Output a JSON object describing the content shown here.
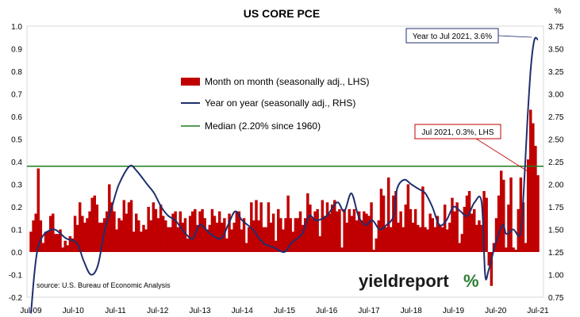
{
  "chart_data": {
    "type": "bar+line",
    "title": "US CORE PCE",
    "left_axis_unit": "",
    "right_axis_unit": "%",
    "left_ylim": [
      -0.2,
      1.0
    ],
    "left_ticks": [
      "-0.2",
      "-0.1",
      "0.0",
      "0.1",
      "0.2",
      "0.3",
      "0.4",
      "0.5",
      "0.6",
      "0.7",
      "0.8",
      "0.9",
      "1.0"
    ],
    "right_ylim": [
      0.75,
      3.75
    ],
    "right_ticks": [
      "0.75",
      "1.00",
      "1.25",
      "1.50",
      "1.75",
      "2.00",
      "2.25",
      "2.50",
      "2.75",
      "3.00",
      "3.25",
      "3.50",
      "3.75"
    ],
    "x_tick_labels": [
      "Jul-09",
      "Jul-10",
      "Jul-11",
      "Jul-12",
      "Jul-13",
      "Jul-14",
      "Jul-15",
      "Jul-16",
      "Jul-17",
      "Jul-18",
      "Jul-19",
      "Jul-20",
      "Jul-21"
    ],
    "grid": false,
    "legend_position": "top-center",
    "legend": {
      "mom": "Month on month (seasonally adj., LHS)",
      "yoy": "Year on year (seasonally adj., RHS)",
      "median": "Median (2.20% since 1960)"
    },
    "colors": {
      "mom": "#c00000",
      "yoy": "#1f2f6e",
      "median": "#1e7b1e"
    },
    "median_rhs": 2.2,
    "mom_values": [
      0.09,
      0.14,
      0.17,
      0.37,
      0.14,
      0.04,
      0.09,
      0.09,
      0.16,
      0.17,
      0.08,
      0.08,
      0.1,
      0.02,
      0.05,
      0.03,
      0.07,
      0.06,
      0.16,
      0.12,
      0.22,
      0.16,
      0.13,
      0.15,
      0.18,
      0.24,
      0.25,
      0.21,
      0.13,
      0.13,
      0.15,
      0.18,
      0.3,
      0.22,
      0.18,
      0.1,
      0.15,
      0.14,
      0.23,
      0.17,
      0.22,
      0.23,
      0.09,
      0.17,
      0.14,
      0.09,
      0.12,
      0.1,
      0.2,
      0.14,
      0.22,
      0.19,
      0.15,
      0.21,
      0.16,
      0.14,
      0.11,
      0.11,
      0.17,
      0.18,
      0.11,
      0.18,
      0.13,
      0.15,
      0.06,
      0.16,
      0.18,
      0.19,
      0.12,
      0.18,
      0.19,
      0.15,
      0.1,
      0.12,
      0.19,
      0.16,
      0.13,
      0.18,
      0.13,
      0.15,
      0.06,
      0.17,
      0.1,
      0.13,
      0.18,
      0.18,
      0.1,
      0.15,
      0.04,
      0.11,
      0.22,
      0.14,
      0.23,
      0.14,
      0.22,
      0.11,
      0.11,
      0.22,
      0.13,
      0.17,
      0.05,
      0.19,
      0.15,
      0.1,
      0.15,
      0.25,
      0.15,
      0.09,
      0.15,
      0.15,
      0.18,
      0.12,
      0.15,
      0.26,
      0.21,
      0.15,
      0.18,
      0.19,
      0.07,
      0.23,
      0.16,
      0.22,
      0.17,
      0.21,
      0.23,
      0.18,
      0.19,
      0.02,
      0.19,
      0.13,
      0.19,
      0.16,
      0.19,
      0.14,
      0.18,
      0.14,
      0.18,
      0.17,
      0.16,
      0.22,
      0.01,
      0.06,
      0.14,
      0.28,
      0.25,
      0.11,
      0.33,
      0.11,
      0.25,
      0.27,
      0.13,
      0.18,
      0.11,
      0.21,
      0.3,
      0.19,
      0.13,
      0.19,
      0.12,
      0.11,
      0.29,
      0.11,
      0.1,
      0.17,
      0.15,
      0.11,
      0.16,
      0.12,
      0.11,
      0.21,
      0.1,
      0.13,
      0.24,
      0.18,
      0.22,
      0.04,
      0.08,
      0.2,
      0.25,
      0.27,
      0.17,
      0.19,
      0.12,
      0.14,
      0.12,
      0.27,
      0.24,
      -0.06,
      -0.15,
      0.04,
      0.15,
      0.25,
      0.36,
      0.32,
      0.02,
      0.21,
      0.33,
      0.02,
      0.01,
      0.19,
      0.33,
      0.22,
      0.04,
      0.41,
      0.63,
      0.57,
      0.47,
      0.34
    ],
    "yoy_points": [
      [
        "Jul-09",
        0.57
      ],
      [
        "Sep-09",
        1.3
      ],
      [
        "Jan-10",
        1.5
      ],
      [
        "May-10",
        1.4
      ],
      [
        "Aug-10",
        1.35
      ],
      [
        "Oct-10",
        1.15
      ],
      [
        "Dec-10",
        1.0
      ],
      [
        "Feb-11",
        1.1
      ],
      [
        "Apr-11",
        1.5
      ],
      [
        "Jun-11",
        1.75
      ],
      [
        "Aug-11",
        2.0
      ],
      [
        "Nov-11",
        2.2
      ],
      [
        "Jan-12",
        2.15
      ],
      [
        "Apr-12",
        2.0
      ],
      [
        "Jun-12",
        1.9
      ],
      [
        "Aug-12",
        1.75
      ],
      [
        "Oct-12",
        1.65
      ],
      [
        "Dec-12",
        1.6
      ],
      [
        "Mar-13",
        1.45
      ],
      [
        "May-13",
        1.4
      ],
      [
        "Jul-13",
        1.55
      ],
      [
        "Oct-13",
        1.45
      ],
      [
        "Jan-14",
        1.4
      ],
      [
        "Mar-14",
        1.55
      ],
      [
        "May-14",
        1.7
      ],
      [
        "Jul-14",
        1.6
      ],
      [
        "Oct-14",
        1.5
      ],
      [
        "Jan-15",
        1.35
      ],
      [
        "Apr-15",
        1.3
      ],
      [
        "Jul-15",
        1.25
      ],
      [
        "Sep-15",
        1.35
      ],
      [
        "Dec-15",
        1.45
      ],
      [
        "Feb-16",
        1.65
      ],
      [
        "Apr-16",
        1.6
      ],
      [
        "Jul-16",
        1.65
      ],
      [
        "Oct-16",
        1.8
      ],
      [
        "Dec-16",
        1.7
      ],
      [
        "Feb-17",
        1.9
      ],
      [
        "Apr-17",
        1.65
      ],
      [
        "Jun-17",
        1.55
      ],
      [
        "Aug-17",
        1.6
      ],
      [
        "Oct-17",
        1.5
      ],
      [
        "Dec-17",
        1.55
      ],
      [
        "Feb-18",
        1.65
      ],
      [
        "Mar-18",
        1.95
      ],
      [
        "May-18",
        2.05
      ],
      [
        "Jul-18",
        2.0
      ],
      [
        "Sep-18",
        1.95
      ],
      [
        "Nov-18",
        1.9
      ],
      [
        "Jan-19",
        1.75
      ],
      [
        "Mar-19",
        1.55
      ],
      [
        "May-19",
        1.6
      ],
      [
        "Jul-19",
        1.75
      ],
      [
        "Sep-19",
        1.7
      ],
      [
        "Nov-19",
        1.65
      ],
      [
        "Jan-20",
        1.8
      ],
      [
        "Mar-20",
        1.8
      ],
      [
        "Apr-20",
        1.0
      ],
      [
        "May-20",
        1.05
      ],
      [
        "Jul-20",
        1.35
      ],
      [
        "Sep-20",
        1.55
      ],
      [
        "Oct-20",
        1.45
      ],
      [
        "Dec-20",
        1.5
      ],
      [
        "Feb-21",
        1.45
      ],
      [
        "Mar-21",
        1.95
      ],
      [
        "Apr-21",
        2.7
      ],
      [
        "May-21",
        3.3
      ],
      [
        "Jun-21",
        3.6
      ],
      [
        "Jul-21",
        3.6
      ]
    ],
    "annotations": {
      "yoy_callout": "Year to Jul 2021, 3.6%",
      "mom_callout": "Jul 2021, 0.3%, LHS"
    },
    "source": "source: U.S. Bureau of Economic Analysis",
    "brand": "yieldreport"
  }
}
